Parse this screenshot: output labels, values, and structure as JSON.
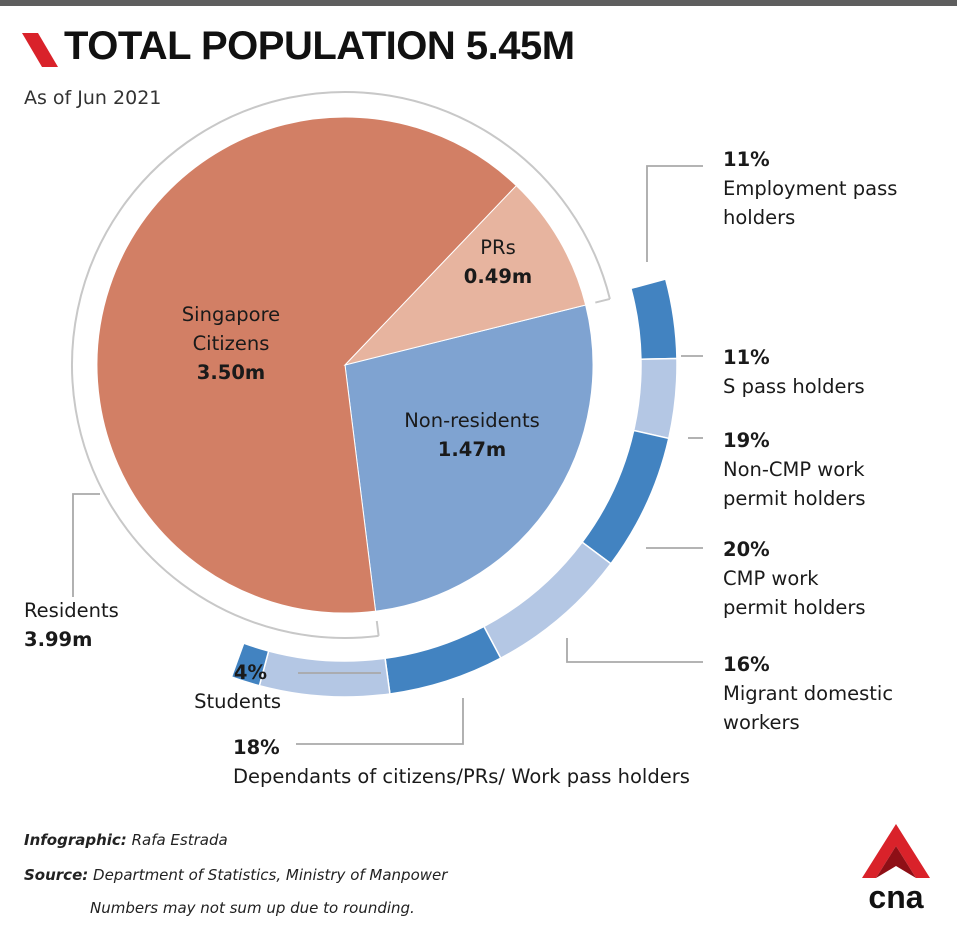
{
  "title": "TOTAL POPULATION 5.45M",
  "subtitle": "As of Jun 2021",
  "colors": {
    "citizens": "#D27F65",
    "prs": "#E7B49F",
    "nonresidents": "#7FA3D1",
    "ring_dark": "#4283C1",
    "ring_light": "#B4C7E4",
    "brand_red": "#D9222A"
  },
  "chart_data": {
    "type": "pie",
    "title": "TOTAL POPULATION 5.45M",
    "subtitle": "As of Jun 2021",
    "total_millions": 5.45,
    "slices": [
      {
        "name": "Singapore Citizens",
        "value": 3.5,
        "label": "3.50m"
      },
      {
        "name": "PRs",
        "value": 0.49,
        "label": "0.49m"
      },
      {
        "name": "Non-residents",
        "value": 1.47,
        "label": "1.47m"
      }
    ],
    "residents": {
      "name": "Residents",
      "value": 3.99,
      "label": "3.99m"
    },
    "nonresident_breakdown": [
      {
        "pct": "11%",
        "label": "Employment pass holders",
        "value": 11
      },
      {
        "pct": "11%",
        "label": "S pass holders",
        "value": 11
      },
      {
        "pct": "19%",
        "label": "Non-CMP work permit holders",
        "value": 19
      },
      {
        "pct": "20%",
        "label": "CMP work permit holders",
        "value": 20
      },
      {
        "pct": "16%",
        "label": "Migrant domestic workers",
        "value": 16
      },
      {
        "pct": "18%",
        "label": "Dependants of citizens/PRs/ Work pass holders",
        "value": 18
      },
      {
        "pct": "4%",
        "label": "Students",
        "value": 4
      }
    ]
  },
  "pie_labels": {
    "citizens_line1": "Singapore",
    "citizens_line2": "Citizens",
    "prs_name": "PRs",
    "nonresidents_name": "Non-residents"
  },
  "side_labels": {
    "ep_line1": "Employment pass",
    "ep_line2": "holders",
    "spass": "S pass holders",
    "noncmp_line1": "Non-CMP work",
    "noncmp_line2": "permit holders",
    "cmp_line1": "CMP work",
    "cmp_line2": "permit holders",
    "mdw_line1": "Migrant domestic",
    "mdw_line2": "workers",
    "students": "Students",
    "dependants": "Dependants of citizens/PRs/ Work pass holders"
  },
  "footer": {
    "infographic_label": "Infographic:",
    "infographic_value": "Rafa Estrada",
    "source_label": "Source:",
    "source_value": "Department of Statistics, Ministry of Manpower",
    "note": "Numbers may not sum up due to rounding."
  },
  "logo_text": "cna"
}
